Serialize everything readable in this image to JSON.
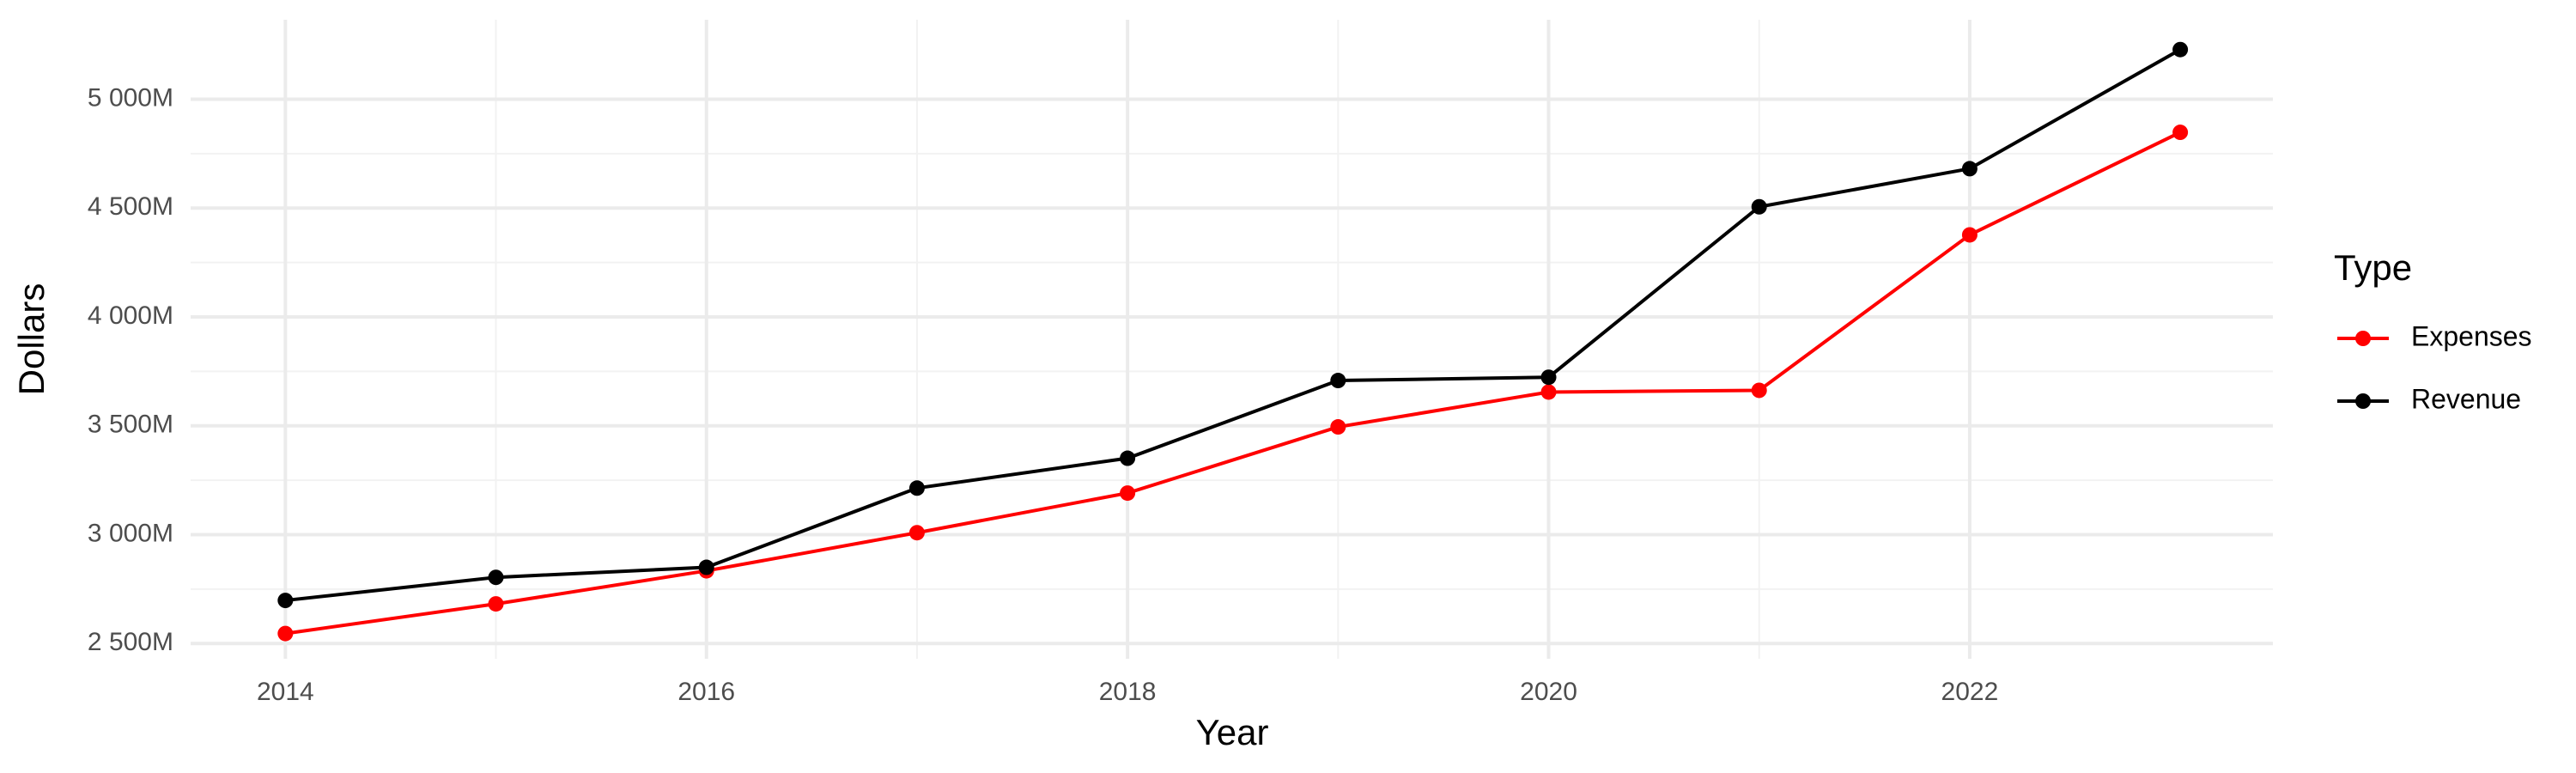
{
  "chart_data": {
    "type": "line",
    "x_label": "Year",
    "y_label": "Dollars",
    "legend_title": "Type",
    "legend_position": "right",
    "x": [
      2014,
      2015,
      2016,
      2017,
      2018,
      2019,
      2020,
      2021,
      2022,
      2023
    ],
    "series": [
      {
        "name": "Expenses",
        "color": "#ff0000",
        "values": [
          2546,
          2682,
          2834,
          3009,
          3191,
          3495,
          3655,
          3663,
          4377,
          4848
        ]
      },
      {
        "name": "Revenue",
        "color": "#000000",
        "values": [
          2698,
          2804,
          2850,
          3214,
          3351,
          3708,
          3723,
          4506,
          4681,
          5228
        ]
      }
    ],
    "xlim": [
      2013.55,
      2023.44
    ],
    "xticks": [
      2014,
      2016,
      2018,
      2020,
      2022
    ],
    "ylim": [
      2430,
      5365
    ],
    "yticks": [
      {
        "value": 2500,
        "label": "2 500M"
      },
      {
        "value": 3000,
        "label": "3 000M"
      },
      {
        "value": 3500,
        "label": "3 500M"
      },
      {
        "value": 4000,
        "label": "4 000M"
      },
      {
        "value": 4500,
        "label": "4 500M"
      },
      {
        "value": 5000,
        "label": "5 000M"
      }
    ],
    "grid": true,
    "minor_grid": true
  }
}
